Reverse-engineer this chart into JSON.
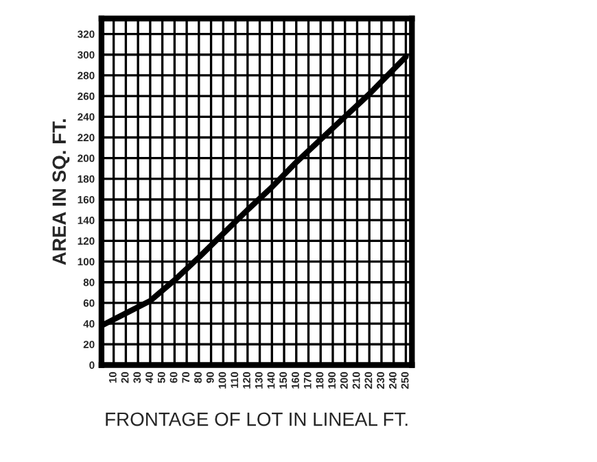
{
  "chart_data": {
    "type": "line",
    "xlabel": "FRONTAGE OF LOT IN LINEAL FT.",
    "ylabel": "AREA IN SQ. FT.",
    "x": [
      0,
      20,
      40,
      60,
      80,
      100,
      120,
      140,
      160,
      180,
      200,
      220,
      250
    ],
    "series": [
      {
        "color": "#000000",
        "values": [
          38,
          50,
          62,
          82,
          104,
          127,
          150,
          172,
          196,
          218,
          240,
          262,
          298
        ]
      }
    ],
    "xlim": [
      0,
      255
    ],
    "ylim": [
      0,
      335
    ],
    "xticks": [
      10,
      20,
      30,
      40,
      50,
      60,
      70,
      80,
      90,
      100,
      110,
      120,
      130,
      140,
      150,
      160,
      170,
      180,
      190,
      200,
      210,
      220,
      230,
      240,
      250
    ],
    "yticks": [
      0,
      20,
      40,
      60,
      80,
      100,
      120,
      140,
      160,
      180,
      200,
      220,
      240,
      260,
      280,
      300,
      320
    ],
    "grid": true,
    "marker": "none",
    "line_style": "solid"
  }
}
